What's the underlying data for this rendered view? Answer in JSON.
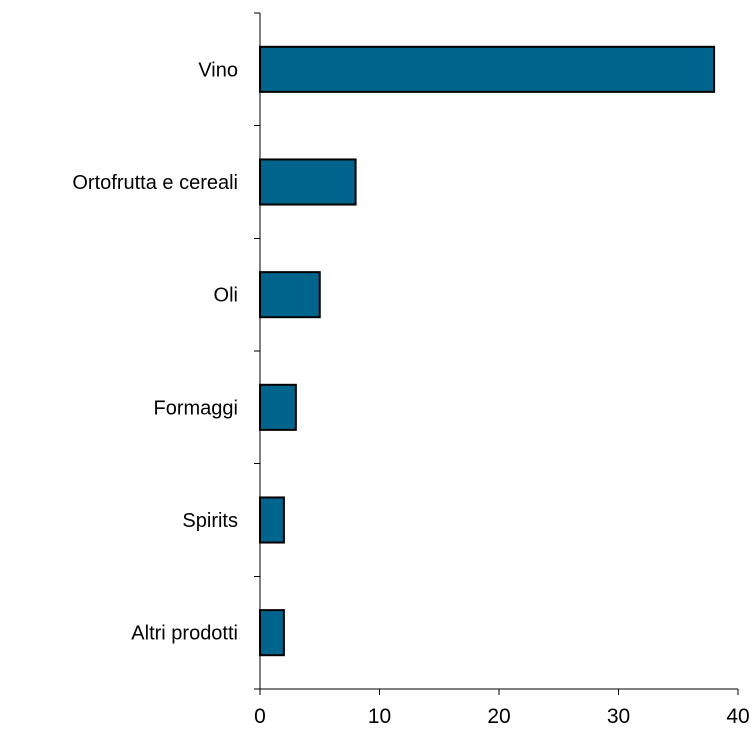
{
  "chart_data": {
    "type": "bar",
    "orientation": "horizontal",
    "title": "",
    "xlabel": "",
    "ylabel": "",
    "categories": [
      "Vino",
      "Ortofrutta e cereali",
      "Oli",
      "Formaggi",
      "Spirits",
      "Altri prodotti"
    ],
    "values": [
      38,
      8,
      5,
      3,
      2,
      2
    ],
    "xlim": [
      0,
      40
    ],
    "xticks": [
      "0",
      "10",
      "20",
      "30",
      "40"
    ],
    "grid": false,
    "legend": "none",
    "bar_color": "#00648C"
  }
}
